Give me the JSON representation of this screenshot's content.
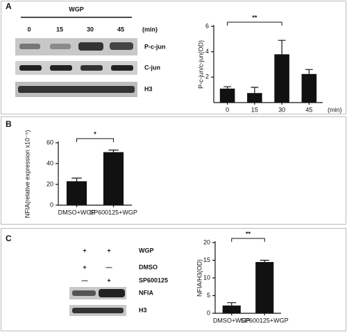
{
  "panel_labels": [
    "A",
    "B",
    "C"
  ],
  "blot_a": {
    "treatment": "WGP",
    "times": [
      "0",
      "15",
      "30",
      "45"
    ],
    "unit": "(min)",
    "rows": [
      "P-c-jun",
      "C-jun",
      "H3"
    ]
  },
  "blot_c": {
    "signs": [
      [
        "+",
        "+"
      ],
      [
        "+",
        "—"
      ],
      [
        "—",
        "+"
      ]
    ],
    "rows": [
      "WGP",
      "DMSO",
      "SP600125"
    ],
    "bands": [
      "NFIA",
      "H3"
    ]
  },
  "chart_data": [
    {
      "type": "bar",
      "ylabel": "P-c-jun/c-jun(OD)",
      "xlabel": "(min)",
      "categories": [
        "0",
        "15",
        "30",
        "45"
      ],
      "values": [
        1.1,
        0.75,
        3.8,
        2.25
      ],
      "errors": [
        0.15,
        0.45,
        1.1,
        0.35
      ],
      "color": "#111111",
      "ylim": [
        0,
        6
      ],
      "yticks": [
        2,
        4,
        6
      ],
      "significance": "**"
    },
    {
      "type": "bar",
      "ylabel": "NFIA(relative expression x10⁻⁵)",
      "categories": [
        "DMSO+WGP",
        "SP600125+WGP"
      ],
      "values": [
        23,
        51
      ],
      "errors": [
        3,
        2
      ],
      "color": "#111111",
      "ylim": [
        0,
        60
      ],
      "yticks": [
        0,
        20,
        40,
        60
      ],
      "significance": "*"
    },
    {
      "type": "bar",
      "ylabel": "NFIA/H3(OD)",
      "categories": [
        "DMSO+WGP",
        "SP600125+WGP"
      ],
      "values": [
        2.2,
        14.5
      ],
      "errors": [
        0.8,
        0.5
      ],
      "color": "#111111",
      "ylim": [
        0,
        20
      ],
      "yticks": [
        0,
        5,
        10,
        15,
        20
      ],
      "significance": "**"
    }
  ]
}
